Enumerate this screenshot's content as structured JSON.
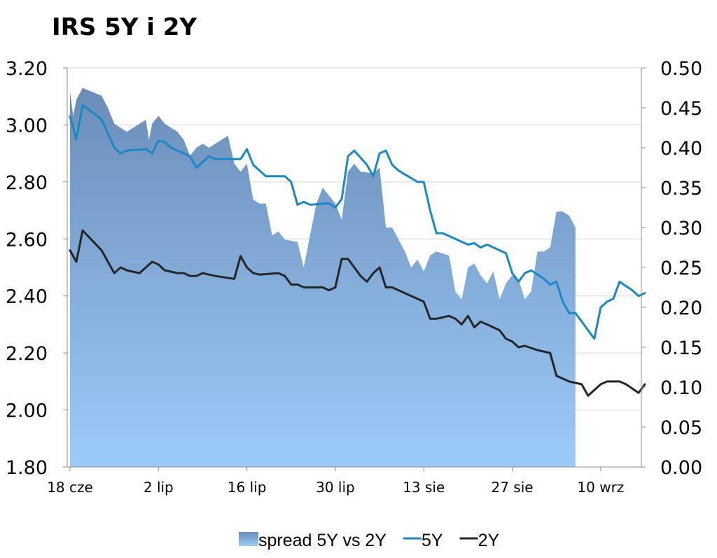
{
  "chart_data": {
    "type": "line",
    "title": "IRS 5Y i 2Y",
    "xlabel": "",
    "ylabel": "",
    "x_ticks": [
      "18 cze",
      "2 lip",
      "16 lip",
      "30 lip",
      "13 sie",
      "27 sie",
      "10 wrz"
    ],
    "x_range_days": [
      0,
      90
    ],
    "x_tick_days": [
      0,
      14,
      28,
      42,
      56,
      70,
      84
    ],
    "y_left": {
      "range": [
        1.8,
        3.2
      ],
      "ticks": [
        "3.20",
        "3.00",
        "2.80",
        "2.60",
        "2.40",
        "2.20",
        "2.00",
        "1.80"
      ]
    },
    "y_right": {
      "range": [
        0.0,
        0.5
      ],
      "ticks": [
        "0.50",
        "0.45",
        "0.40",
        "0.35",
        "0.30",
        "0.25",
        "0.20",
        "0.15",
        "0.10",
        "0.05",
        "0.00"
      ]
    },
    "grid": true,
    "legend_position": "bottom",
    "colors": {
      "spread_top": "#6a8db8",
      "spread_bottom": "#9ccbfa",
      "line_5y": "#1b87c6",
      "line_2y": "#262626",
      "grid": "#d9d9d9"
    },
    "series": [
      {
        "name": "spread 5Y vs 2Y",
        "kind": "area",
        "axis": "right",
        "points": [
          [
            0,
            0.47
          ],
          [
            0.5,
            0.44
          ],
          [
            1,
            0.46
          ],
          [
            2,
            0.475
          ],
          [
            5,
            0.465
          ],
          [
            6,
            0.45
          ],
          [
            7,
            0.43
          ],
          [
            8,
            0.425
          ],
          [
            9,
            0.42
          ],
          [
            12,
            0.435
          ],
          [
            12.5,
            0.41
          ],
          [
            13,
            0.43
          ],
          [
            14,
            0.44
          ],
          [
            15,
            0.43
          ],
          [
            17,
            0.42
          ],
          [
            18,
            0.41
          ],
          [
            19,
            0.39
          ],
          [
            20,
            0.4
          ],
          [
            21,
            0.405
          ],
          [
            22,
            0.4
          ],
          [
            24,
            0.41
          ],
          [
            25,
            0.415
          ],
          [
            26,
            0.38
          ],
          [
            27,
            0.37
          ],
          [
            28,
            0.38
          ],
          [
            29,
            0.335
          ],
          [
            30,
            0.33
          ],
          [
            31,
            0.33
          ],
          [
            32,
            0.29
          ],
          [
            33,
            0.295
          ],
          [
            34,
            0.285
          ],
          [
            36,
            0.282
          ],
          [
            37,
            0.25
          ],
          [
            38,
            0.29
          ],
          [
            39,
            0.33
          ],
          [
            40,
            0.35
          ],
          [
            42,
            0.33
          ],
          [
            43,
            0.31
          ],
          [
            44,
            0.37
          ],
          [
            45,
            0.38
          ],
          [
            46,
            0.37
          ],
          [
            48,
            0.368
          ],
          [
            49,
            0.375
          ],
          [
            50,
            0.3
          ],
          [
            51,
            0.3
          ],
          [
            53,
            0.27
          ],
          [
            54,
            0.25
          ],
          [
            55,
            0.26
          ],
          [
            56,
            0.245
          ],
          [
            57,
            0.265
          ],
          [
            58,
            0.27
          ],
          [
            60,
            0.265
          ],
          [
            61,
            0.22
          ],
          [
            62,
            0.21
          ],
          [
            63,
            0.25
          ],
          [
            64,
            0.255
          ],
          [
            65,
            0.24
          ],
          [
            66,
            0.23
          ],
          [
            67,
            0.245
          ],
          [
            68,
            0.21
          ],
          [
            69,
            0.23
          ],
          [
            70,
            0.24
          ],
          [
            71,
            0.235
          ],
          [
            72,
            0.21
          ],
          [
            73,
            0.22
          ],
          [
            74,
            0.27
          ],
          [
            75,
            0.27
          ],
          [
            76,
            0.275
          ],
          [
            77,
            0.32
          ],
          [
            78,
            0.32
          ],
          [
            79,
            0.315
          ],
          [
            80,
            0.3
          ]
        ]
      },
      {
        "name": "5Y",
        "kind": "line",
        "axis": "left",
        "points": [
          [
            0,
            3.03
          ],
          [
            1,
            2.95
          ],
          [
            2,
            3.07
          ],
          [
            5,
            3.02
          ],
          [
            6,
            2.97
          ],
          [
            7,
            2.92
          ],
          [
            8,
            2.9
          ],
          [
            9,
            2.91
          ],
          [
            12,
            2.915
          ],
          [
            13,
            2.9
          ],
          [
            14,
            2.945
          ],
          [
            15,
            2.94
          ],
          [
            16,
            2.92
          ],
          [
            18,
            2.9
          ],
          [
            19,
            2.89
          ],
          [
            20,
            2.85
          ],
          [
            21,
            2.87
          ],
          [
            22,
            2.89
          ],
          [
            23,
            2.88
          ],
          [
            27,
            2.88
          ],
          [
            28,
            2.915
          ],
          [
            29,
            2.86
          ],
          [
            30,
            2.84
          ],
          [
            31,
            2.82
          ],
          [
            34,
            2.82
          ],
          [
            35,
            2.8
          ],
          [
            36,
            2.72
          ],
          [
            37,
            2.73
          ],
          [
            38,
            2.72
          ],
          [
            41,
            2.725
          ],
          [
            42,
            2.71
          ],
          [
            43,
            2.74
          ],
          [
            44,
            2.89
          ],
          [
            45,
            2.91
          ],
          [
            47,
            2.86
          ],
          [
            48,
            2.82
          ],
          [
            49,
            2.9
          ],
          [
            50,
            2.91
          ],
          [
            51,
            2.86
          ],
          [
            52,
            2.84
          ],
          [
            55,
            2.8
          ],
          [
            56,
            2.8
          ],
          [
            57,
            2.7
          ],
          [
            58,
            2.62
          ],
          [
            59,
            2.62
          ],
          [
            61,
            2.6
          ],
          [
            62,
            2.59
          ],
          [
            63,
            2.58
          ],
          [
            64,
            2.585
          ],
          [
            65,
            2.57
          ],
          [
            66,
            2.58
          ],
          [
            69,
            2.55
          ],
          [
            70,
            2.48
          ],
          [
            71,
            2.45
          ],
          [
            72,
            2.48
          ],
          [
            73,
            2.49
          ],
          [
            75,
            2.46
          ],
          [
            76,
            2.44
          ],
          [
            77,
            2.45
          ],
          [
            78,
            2.38
          ],
          [
            79,
            2.34
          ],
          [
            80,
            2.34
          ],
          [
            82,
            2.28
          ],
          [
            83,
            2.25
          ],
          [
            84,
            2.36
          ],
          [
            85,
            2.38
          ],
          [
            86,
            2.39
          ],
          [
            87,
            2.45
          ],
          [
            89,
            2.42
          ],
          [
            90,
            2.4
          ],
          [
            91,
            2.41
          ]
        ]
      },
      {
        "name": "2Y",
        "kind": "line",
        "axis": "left",
        "points": [
          [
            0,
            2.56
          ],
          [
            1,
            2.52
          ],
          [
            2,
            2.63
          ],
          [
            5,
            2.56
          ],
          [
            6,
            2.52
          ],
          [
            7,
            2.48
          ],
          [
            8,
            2.5
          ],
          [
            9,
            2.49
          ],
          [
            11,
            2.48
          ],
          [
            12,
            2.5
          ],
          [
            13,
            2.52
          ],
          [
            14,
            2.51
          ],
          [
            15,
            2.49
          ],
          [
            17,
            2.48
          ],
          [
            18,
            2.48
          ],
          [
            19,
            2.47
          ],
          [
            20,
            2.47
          ],
          [
            21,
            2.48
          ],
          [
            22,
            2.475
          ],
          [
            23,
            2.47
          ],
          [
            26,
            2.46
          ],
          [
            27,
            2.54
          ],
          [
            28,
            2.5
          ],
          [
            29,
            2.48
          ],
          [
            30,
            2.475
          ],
          [
            33,
            2.48
          ],
          [
            34,
            2.47
          ],
          [
            35,
            2.44
          ],
          [
            36,
            2.44
          ],
          [
            37,
            2.43
          ],
          [
            40,
            2.43
          ],
          [
            41,
            2.42
          ],
          [
            42,
            2.43
          ],
          [
            43,
            2.53
          ],
          [
            44,
            2.53
          ],
          [
            46,
            2.47
          ],
          [
            47,
            2.45
          ],
          [
            48,
            2.48
          ],
          [
            49,
            2.5
          ],
          [
            50,
            2.43
          ],
          [
            51,
            2.43
          ],
          [
            55,
            2.39
          ],
          [
            56,
            2.38
          ],
          [
            57,
            2.32
          ],
          [
            58,
            2.32
          ],
          [
            60,
            2.33
          ],
          [
            61,
            2.32
          ],
          [
            62,
            2.3
          ],
          [
            63,
            2.33
          ],
          [
            64,
            2.29
          ],
          [
            65,
            2.31
          ],
          [
            66,
            2.3
          ],
          [
            68,
            2.28
          ],
          [
            69,
            2.25
          ],
          [
            70,
            2.24
          ],
          [
            71,
            2.22
          ],
          [
            72,
            2.225
          ],
          [
            74,
            2.21
          ],
          [
            76,
            2.2
          ],
          [
            77,
            2.12
          ],
          [
            78,
            2.11
          ],
          [
            79,
            2.1
          ],
          [
            81,
            2.09
          ],
          [
            82,
            2.05
          ],
          [
            83,
            2.07
          ],
          [
            84,
            2.09
          ],
          [
            85,
            2.1
          ],
          [
            87,
            2.1
          ],
          [
            88,
            2.09
          ],
          [
            90,
            2.06
          ],
          [
            91,
            2.09
          ]
        ]
      }
    ]
  }
}
